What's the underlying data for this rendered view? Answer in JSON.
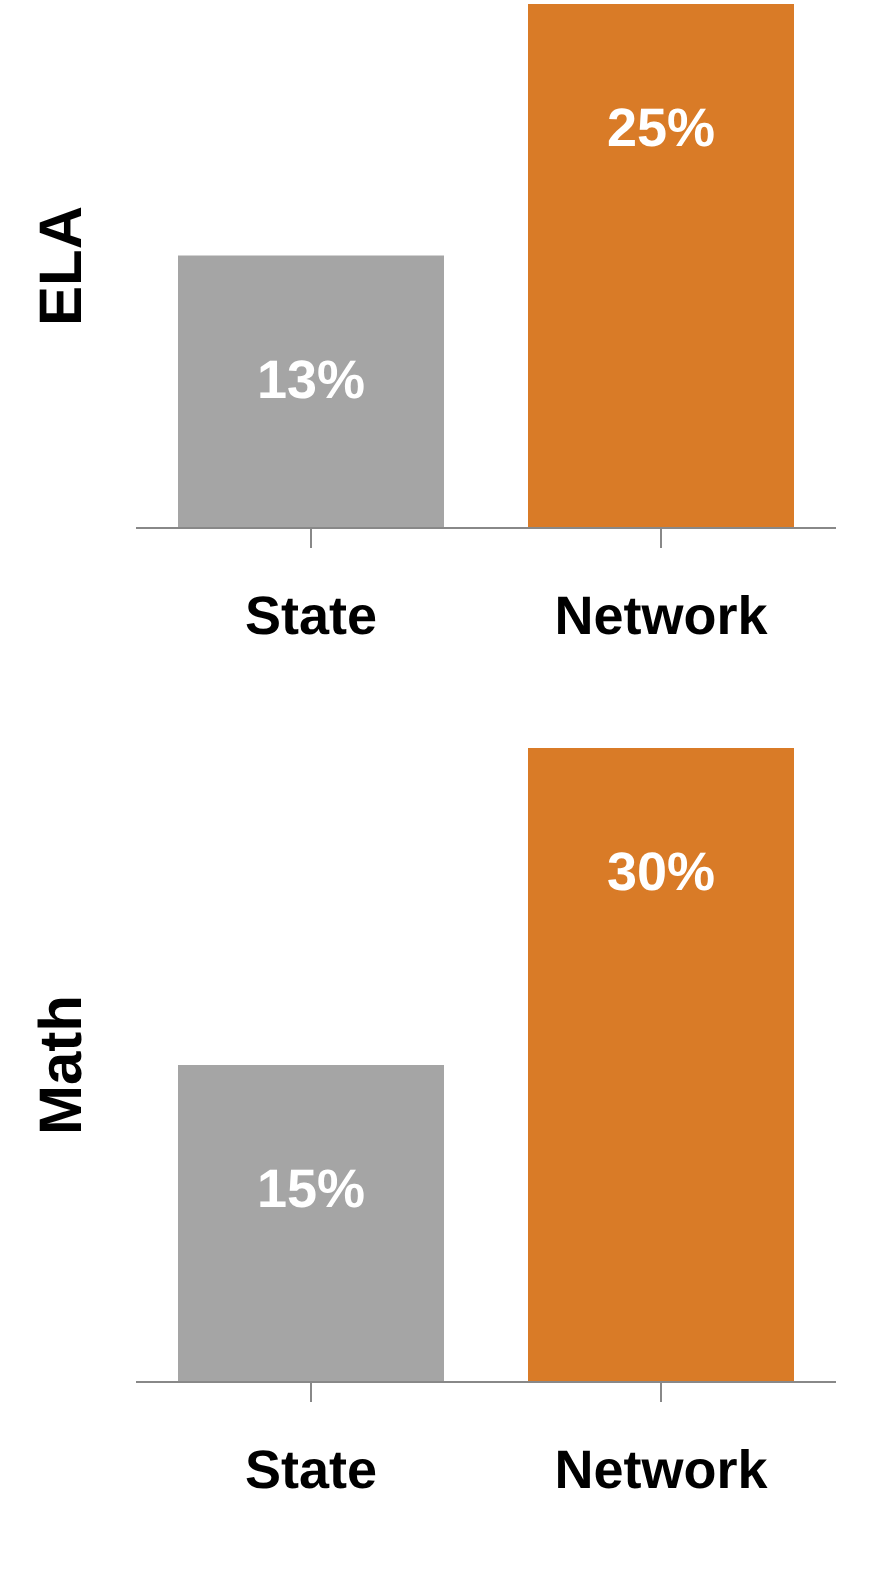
{
  "chart_data": [
    {
      "type": "bar",
      "ylabel": "ELA",
      "categories": [
        "State",
        "Network"
      ],
      "values": [
        13,
        25
      ],
      "colors": [
        "#a5a5a5",
        "#d97b27"
      ],
      "value_labels": [
        "13%",
        "25%"
      ]
    },
    {
      "type": "bar",
      "ylabel": "Math",
      "categories": [
        "State",
        "Network"
      ],
      "values": [
        15,
        30
      ],
      "colors": [
        "#a5a5a5",
        "#d97b27"
      ],
      "value_labels": [
        "15%",
        "30%"
      ]
    }
  ]
}
